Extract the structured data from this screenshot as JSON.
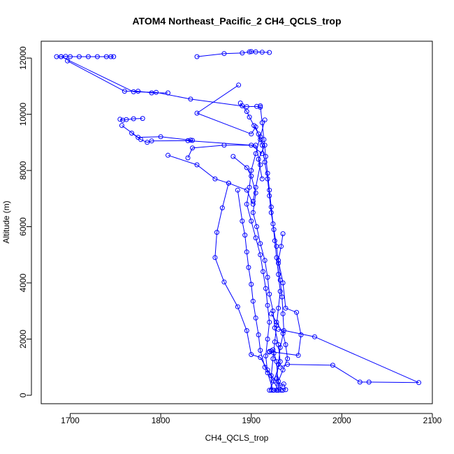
{
  "chart_data": {
    "type": "scatter",
    "title": "ATOM4 Northeast_Pacific_2 CH4_QCLS_trop",
    "xlabel": "CH4_QCLS_trop",
    "ylabel": "Altitude (m)",
    "xlim": [
      1668,
      2100
    ],
    "ylim": [
      -300,
      12600
    ],
    "x_ticks": [
      1700,
      1800,
      1900,
      2000,
      2100
    ],
    "y_ticks": [
      0,
      2000,
      4000,
      6000,
      8000,
      10000,
      12000
    ],
    "grid": false,
    "series_color": "#0000ff",
    "segments": [
      [
        [
          1920,
          12200
        ],
        [
          1912,
          12210
        ],
        [
          1905,
          12220
        ],
        [
          1900,
          12230
        ],
        [
          1898,
          12220
        ],
        [
          1890,
          12180
        ],
        [
          1870,
          12160
        ],
        [
          1840,
          12050
        ]
      ],
      [
        [
          1685,
          12050
        ],
        [
          1690,
          12050
        ],
        [
          1695,
          12060
        ],
        [
          1700,
          12050
        ],
        [
          1710,
          12050
        ],
        [
          1720,
          12050
        ],
        [
          1730,
          12050
        ],
        [
          1740,
          12050
        ],
        [
          1745,
          12050
        ],
        [
          1748,
          12050
        ]
      ],
      [
        [
          1697,
          11900
        ],
        [
          1760,
          10820
        ],
        [
          1775,
          10820
        ],
        [
          1790,
          10760
        ],
        [
          1808,
          10760
        ]
      ],
      [
        [
          1690,
          12050
        ],
        [
          1770,
          10800
        ],
        [
          1795,
          10780
        ],
        [
          1833,
          10540
        ],
        [
          1895,
          10270
        ],
        [
          1906,
          10280
        ],
        [
          1910,
          10250
        ]
      ],
      [
        [
          1886,
          11040
        ],
        [
          1840,
          10040
        ],
        [
          1900,
          9300
        ],
        [
          1905,
          9550
        ],
        [
          1910,
          9100
        ],
        [
          1915,
          8900
        ],
        [
          1908,
          8400
        ],
        [
          1912,
          7700
        ]
      ],
      [
        [
          1755,
          9820
        ],
        [
          1758,
          9790
        ],
        [
          1762,
          9810
        ],
        [
          1770,
          9840
        ],
        [
          1780,
          9850
        ]
      ],
      [
        [
          1757,
          9600
        ],
        [
          1775,
          9180
        ],
        [
          1800,
          9200
        ],
        [
          1833,
          9080
        ],
        [
          1835,
          9070
        ]
      ],
      [
        [
          1768,
          9330
        ],
        [
          1778,
          9100
        ],
        [
          1785,
          9000
        ],
        [
          1790,
          9050
        ],
        [
          1830,
          9060
        ],
        [
          1900,
          8900
        ],
        [
          1912,
          8600
        ]
      ],
      [
        [
          1808,
          8540
        ],
        [
          1840,
          8200
        ],
        [
          1860,
          7700
        ],
        [
          1875,
          7550
        ],
        [
          1895,
          7300
        ],
        [
          1902,
          6800
        ]
      ],
      [
        [
          1830,
          8450
        ],
        [
          1835,
          8800
        ],
        [
          1870,
          8900
        ],
        [
          1905,
          8900
        ],
        [
          1910,
          8200
        ],
        [
          1905,
          7400
        ],
        [
          1902,
          6900
        ]
      ],
      [
        [
          1880,
          8500
        ],
        [
          1895,
          8100
        ],
        [
          1900,
          7800
        ],
        [
          1905,
          7200
        ],
        [
          1902,
          6500
        ],
        [
          1906,
          6000
        ],
        [
          1910,
          5400
        ],
        [
          1915,
          4800
        ],
        [
          1918,
          4200
        ],
        [
          1920,
          3600
        ],
        [
          1924,
          3000
        ],
        [
          1926,
          2400
        ],
        [
          1930,
          1800
        ],
        [
          1932,
          1200
        ],
        [
          1925,
          500
        ],
        [
          1920,
          180
        ]
      ],
      [
        [
          1888,
          10400
        ],
        [
          1890,
          10300
        ],
        [
          1895,
          10100
        ],
        [
          1898,
          9900
        ],
        [
          1903,
          9600
        ],
        [
          1908,
          9300
        ],
        [
          1912,
          8900
        ],
        [
          1915,
          8300
        ],
        [
          1918,
          7700
        ],
        [
          1920,
          7100
        ],
        [
          1922,
          6500
        ],
        [
          1925,
          5900
        ],
        [
          1928,
          5300
        ],
        [
          1930,
          4700
        ],
        [
          1932,
          4100
        ],
        [
          1934,
          3500
        ],
        [
          1935,
          2900
        ],
        [
          1936,
          2300
        ],
        [
          1932,
          1700
        ],
        [
          1930,
          1100
        ],
        [
          1928,
          600
        ],
        [
          1928,
          180
        ]
      ],
      [
        [
          1910,
          10300
        ],
        [
          1912,
          9700
        ],
        [
          1914,
          9100
        ],
        [
          1916,
          8500
        ],
        [
          1918,
          7900
        ],
        [
          1920,
          7300
        ],
        [
          1922,
          6700
        ],
        [
          1924,
          6100
        ],
        [
          1926,
          5500
        ],
        [
          1928,
          4900
        ],
        [
          1930,
          4300
        ],
        [
          1932,
          3700
        ],
        [
          1930,
          3100
        ],
        [
          1928,
          2500
        ],
        [
          1926,
          1900
        ],
        [
          1924,
          1300
        ],
        [
          1922,
          700
        ],
        [
          1922,
          180
        ]
      ],
      [
        [
          1915,
          9800
        ],
        [
          1910,
          9200
        ],
        [
          1905,
          8600
        ],
        [
          1900,
          8000
        ],
        [
          1898,
          7400
        ],
        [
          1895,
          6800
        ],
        [
          1900,
          6200
        ],
        [
          1905,
          5600
        ],
        [
          1910,
          5000
        ],
        [
          1913,
          4400
        ],
        [
          1916,
          3800
        ],
        [
          1918,
          3200
        ],
        [
          1920,
          2600
        ],
        [
          1918,
          2000
        ],
        [
          1916,
          1400
        ],
        [
          1918,
          800
        ],
        [
          1924,
          180
        ]
      ],
      [
        [
          1875,
          7550
        ],
        [
          1868,
          6670
        ],
        [
          1862,
          5800
        ],
        [
          1860,
          4900
        ],
        [
          1870,
          4030
        ],
        [
          1885,
          3150
        ],
        [
          1895,
          2300
        ],
        [
          1900,
          1450
        ],
        [
          1910,
          1350
        ],
        [
          1918,
          900
        ],
        [
          1930,
          180
        ]
      ],
      [
        [
          1885,
          7300
        ],
        [
          1890,
          6200
        ],
        [
          1893,
          5700
        ],
        [
          1895,
          5100
        ],
        [
          1897,
          4550
        ],
        [
          1900,
          3950
        ],
        [
          1902,
          3350
        ],
        [
          1905,
          2750
        ],
        [
          1908,
          2150
        ],
        [
          1910,
          1600
        ],
        [
          1915,
          1000
        ],
        [
          1935,
          180
        ]
      ],
      [
        [
          1935,
          5750
        ],
        [
          1933,
          5300
        ],
        [
          1930,
          4800
        ],
        [
          1935,
          4000
        ],
        [
          1938,
          3100
        ],
        [
          1950,
          2950
        ],
        [
          1955,
          2150
        ],
        [
          1952,
          1420
        ],
        [
          1920,
          1560
        ]
      ],
      [
        [
          1930,
          2350
        ],
        [
          1970,
          2080
        ],
        [
          2085,
          450
        ],
        [
          2030,
          470
        ],
        [
          2020,
          470
        ],
        [
          1990,
          1070
        ],
        [
          1940,
          1100
        ],
        [
          1932,
          1000
        ]
      ],
      [
        [
          1922,
          2900
        ],
        [
          1928,
          2600
        ],
        [
          1935,
          2200
        ],
        [
          1938,
          1800
        ],
        [
          1940,
          1300
        ],
        [
          1935,
          900
        ],
        [
          1930,
          500
        ],
        [
          1932,
          350
        ],
        [
          1936,
          400
        ],
        [
          1938,
          200
        ]
      ],
      [
        [
          1920,
          1540
        ],
        [
          1922,
          1580
        ],
        [
          1924,
          1620
        ],
        [
          1925,
          1500
        ],
        [
          1928,
          1200
        ],
        [
          1930,
          180
        ],
        [
          1933,
          180
        ],
        [
          1928,
          180
        ],
        [
          1925,
          180
        ]
      ]
    ]
  }
}
